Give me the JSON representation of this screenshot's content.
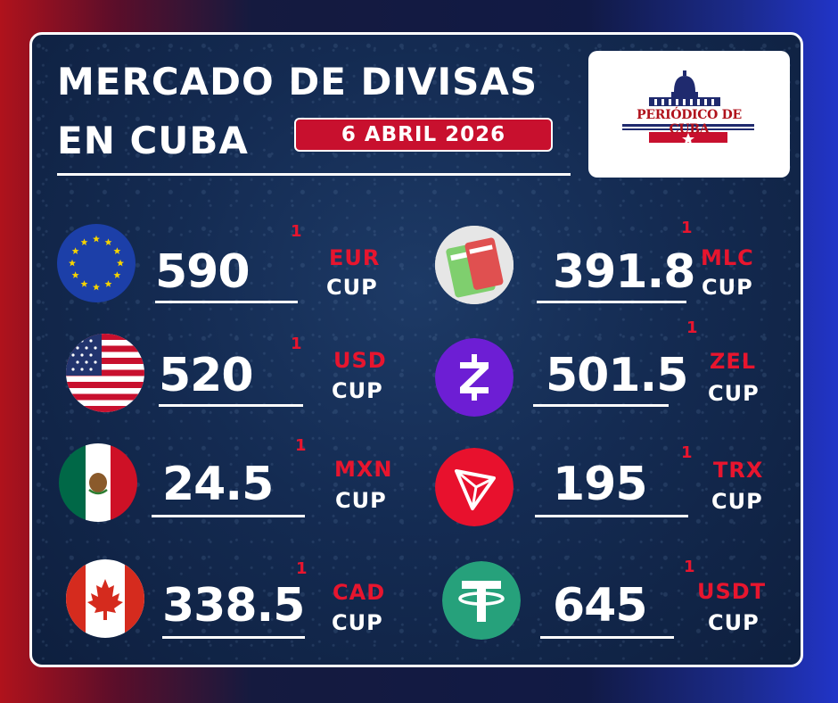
{
  "header": {
    "title_line1": "MERCADO DE DIVISAS",
    "title_line2": "EN CUBA",
    "date": "6 ABRIL 2026",
    "logo_text": "PERIÓDICO DE CUBA"
  },
  "colors": {
    "accent_red": "#e8152e",
    "badge_red": "#c8102e",
    "card_blue": "#142b52"
  },
  "rates": [
    {
      "icon": "eu-flag-icon",
      "value": "590",
      "sup": "1",
      "code": "EUR",
      "unit": "CUP"
    },
    {
      "icon": "us-flag-icon",
      "value": "520",
      "sup": "1",
      "code": "USD",
      "unit": "CUP"
    },
    {
      "icon": "mexico-flag-icon",
      "value": "24.5",
      "sup": "1",
      "code": "MXN",
      "unit": "CUP"
    },
    {
      "icon": "canada-flag-icon",
      "value": "338.5",
      "sup": "1",
      "code": "CAD",
      "unit": "CUP"
    },
    {
      "icon": "mlc-card-icon",
      "value": "391.8",
      "sup": "1",
      "code": "MLC",
      "unit": "CUP"
    },
    {
      "icon": "zelle-icon",
      "value": "501.5",
      "sup": "1",
      "code": "ZEL",
      "unit": "CUP"
    },
    {
      "icon": "tron-icon",
      "value": "195",
      "sup": "1",
      "code": "TRX",
      "unit": "CUP"
    },
    {
      "icon": "tether-icon",
      "value": "645",
      "sup": "1",
      "code": "USDT",
      "unit": "CUP"
    }
  ]
}
